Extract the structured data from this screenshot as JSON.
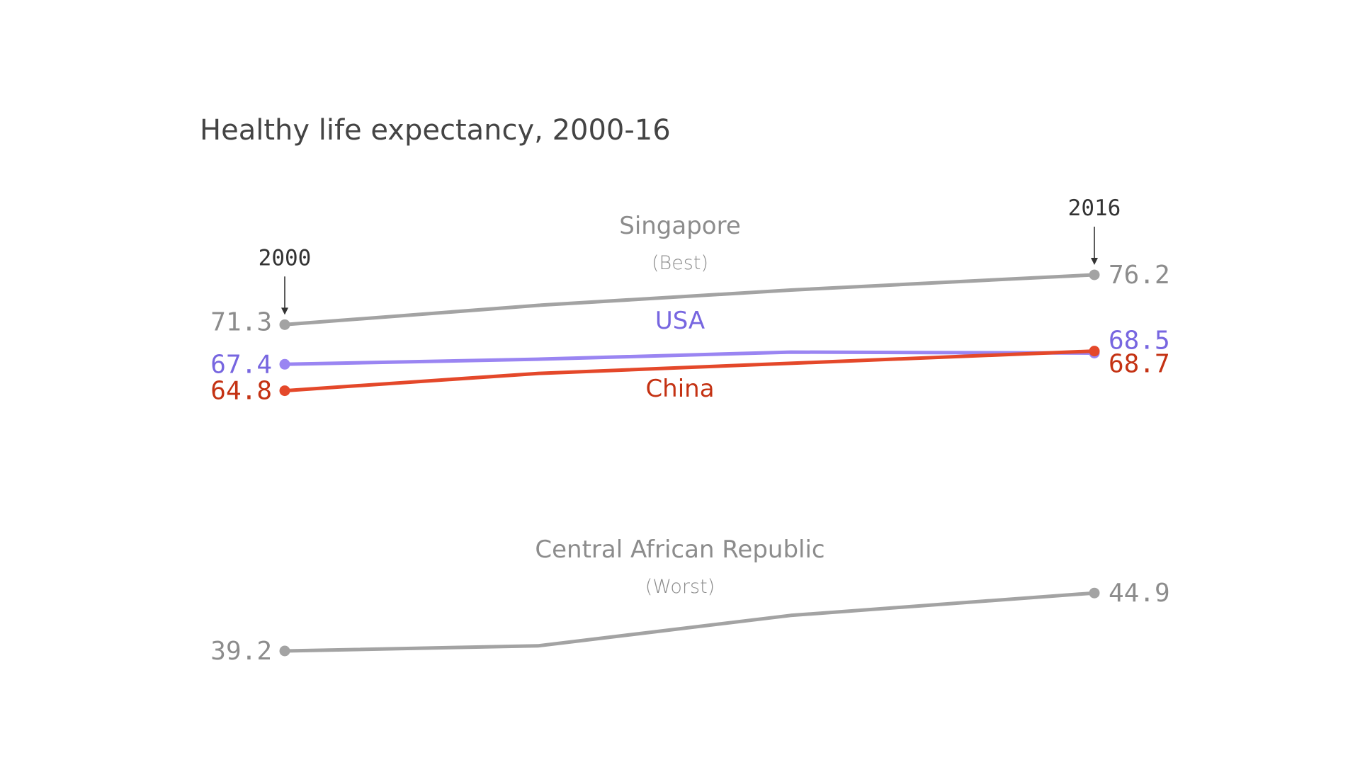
{
  "chart_data": {
    "type": "line",
    "title": "Healthy life expectancy, 2000-16",
    "x": [
      2000,
      2005,
      2010,
      2016
    ],
    "year_markers": [
      {
        "year": 2000,
        "label": "2000"
      },
      {
        "year": 2016,
        "label": "2016"
      }
    ],
    "series": [
      {
        "name": "Singapore",
        "note": "(Best)",
        "color": "#a3a3a3",
        "label_color": "#8c8c8c",
        "values": [
          71.3,
          73.2,
          74.7,
          76.2
        ],
        "start_label": "71.3",
        "end_label": "76.2"
      },
      {
        "name": "USA",
        "note": "",
        "color": "#9a85f2",
        "label_color": "#7766e0",
        "values": [
          67.4,
          67.9,
          68.6,
          68.5
        ],
        "start_label": "67.4",
        "end_label": "68.5"
      },
      {
        "name": "China",
        "note": "",
        "color": "#e4482a",
        "label_color": "#c43213",
        "values": [
          64.8,
          66.5,
          67.5,
          68.7
        ],
        "start_label": "64.8",
        "end_label": "68.7"
      },
      {
        "name": "Central African Republic",
        "note": "(Worst)",
        "color": "#a3a3a3",
        "label_color": "#8c8c8c",
        "values": [
          39.2,
          39.7,
          42.7,
          44.9
        ],
        "start_label": "39.2",
        "end_label": "44.9"
      }
    ]
  }
}
